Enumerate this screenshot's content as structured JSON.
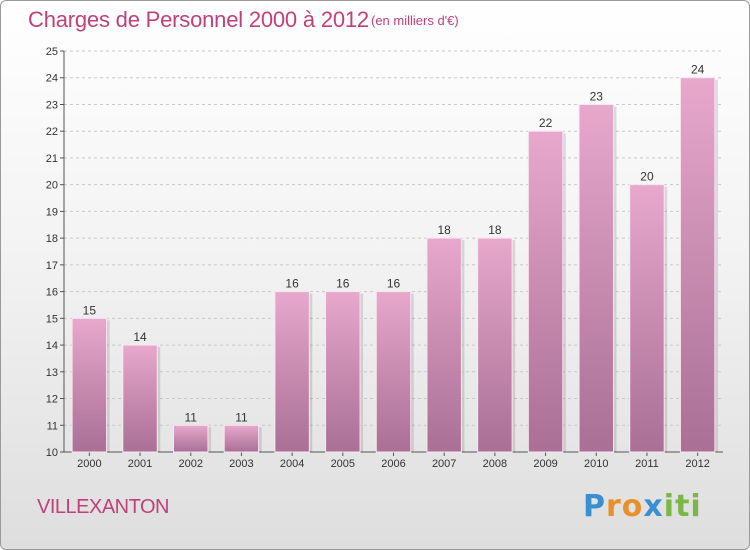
{
  "header": {
    "title": "Charges de Personnel 2000 à 2012",
    "unit": "(en milliers d'€)"
  },
  "location": "VILLEXANTON",
  "logo": {
    "text": "Proxiti",
    "letters": [
      {
        "char": "P",
        "color": "#3a8fd0"
      },
      {
        "char": "r",
        "color": "#e8902a"
      },
      {
        "char": "o",
        "color": "#e8902a"
      },
      {
        "char": "x",
        "color": "#3a8fd0"
      },
      {
        "char": "i",
        "color": "#7ab648"
      },
      {
        "char": "t",
        "color": "#7ab648"
      },
      {
        "char": "i",
        "color": "#7ab648"
      }
    ]
  },
  "colors": {
    "accent": "#c0407a",
    "bar_top": "#e7a8cc",
    "bar_bottom": "#a96f95"
  },
  "chart_data": {
    "type": "bar",
    "categories": [
      "2000",
      "2001",
      "2002",
      "2003",
      "2004",
      "2005",
      "2006",
      "2007",
      "2008",
      "2009",
      "2010",
      "2011",
      "2012"
    ],
    "values": [
      15,
      14,
      11,
      11,
      16,
      16,
      16,
      18,
      18,
      22,
      23,
      20,
      24
    ],
    "ylim": [
      10,
      25
    ],
    "yticks": [
      10,
      11,
      12,
      13,
      14,
      15,
      16,
      17,
      18,
      19,
      20,
      21,
      22,
      23,
      24,
      25
    ],
    "grid": true,
    "title": "Charges de Personnel 2000 à 2012",
    "ylabel": "(en milliers d'€)"
  }
}
